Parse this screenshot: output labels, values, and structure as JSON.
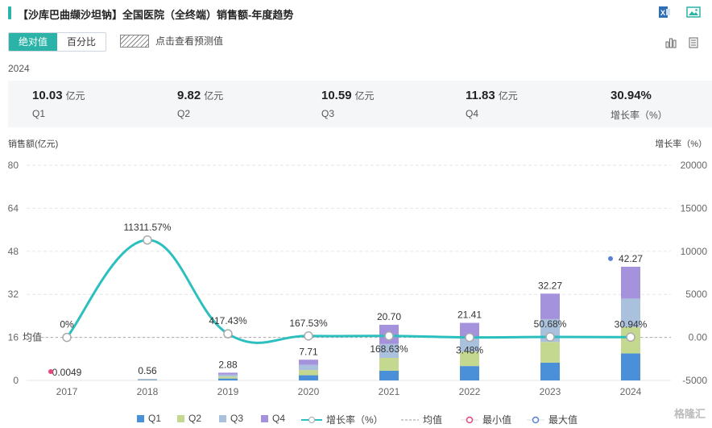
{
  "header": {
    "title": "【沙库巴曲缬沙坦钠】全国医院（全终端）销售额-年度趋势",
    "accent": "#2bb3a7"
  },
  "toolbar": {
    "tab_absolute": "绝对值",
    "tab_percent": "百分比",
    "forecast_label": "点击查看预测值"
  },
  "summary": {
    "year": "2024",
    "items": [
      {
        "value": "10.03",
        "unit": "亿元",
        "name": "Q1"
      },
      {
        "value": "9.82",
        "unit": "亿元",
        "name": "Q2"
      },
      {
        "value": "10.59",
        "unit": "亿元",
        "name": "Q3"
      },
      {
        "value": "11.83",
        "unit": "亿元",
        "name": "Q4"
      },
      {
        "value": "30.94%",
        "unit": "",
        "name": "增长率（%）"
      }
    ]
  },
  "chart_data": {
    "type": "bar",
    "categories": [
      "2017",
      "2018",
      "2019",
      "2020",
      "2021",
      "2022",
      "2023",
      "2024"
    ],
    "ylabel": "销售额(亿元)",
    "y2label": "增长率（%）",
    "ylim": [
      0,
      80
    ],
    "y2lim": [
      -5000,
      20000
    ],
    "yticks": [
      "0",
      "16",
      "32",
      "48",
      "64",
      "80"
    ],
    "y2ticks": [
      "-5000",
      "0.00",
      "5000",
      "10000",
      "15000",
      "20000"
    ],
    "stacked": true,
    "series": [
      {
        "name": "Q1",
        "color": "#4a90d9",
        "values": [
          0.001,
          0.14,
          0.72,
          1.93,
          3.62,
          5.35,
          6.6,
          10.03
        ]
      },
      {
        "name": "Q2",
        "color": "#c5d88f",
        "values": [
          0.001,
          0.14,
          0.72,
          1.93,
          4.76,
          5.35,
          7.7,
          9.82
        ]
      },
      {
        "name": "Q3",
        "color": "#a9c1dc",
        "values": [
          0.001,
          0.14,
          0.72,
          1.93,
          5.17,
          5.35,
          8.5,
          10.59
        ]
      },
      {
        "name": "Q4",
        "color": "#a592dd",
        "values": [
          0.0019,
          0.14,
          0.72,
          1.92,
          7.15,
          5.36,
          9.47,
          11.83
        ]
      }
    ],
    "totals": [
      "0.0049",
      "0.56",
      "2.88",
      "7.71",
      "20.70",
      "21.41",
      "32.27",
      "42.27"
    ],
    "growth": {
      "name": "增长率（%）",
      "color": "#2bbfbf",
      "values": [
        0,
        11311.57,
        417.43,
        167.53,
        168.63,
        3.48,
        50.68,
        30.94
      ],
      "labels": [
        "0%",
        "11311.57%",
        "417.43%",
        "167.53%",
        "168.63%",
        "3.48%",
        "50.68%",
        "30.94%"
      ]
    },
    "mean_label": "均值",
    "mean_value": 16,
    "legend_extra": [
      "均值",
      "最小值",
      "最大值"
    ],
    "min_color": "#e8467c",
    "max_color": "#5b7fd6"
  },
  "watermark": "格隆汇"
}
